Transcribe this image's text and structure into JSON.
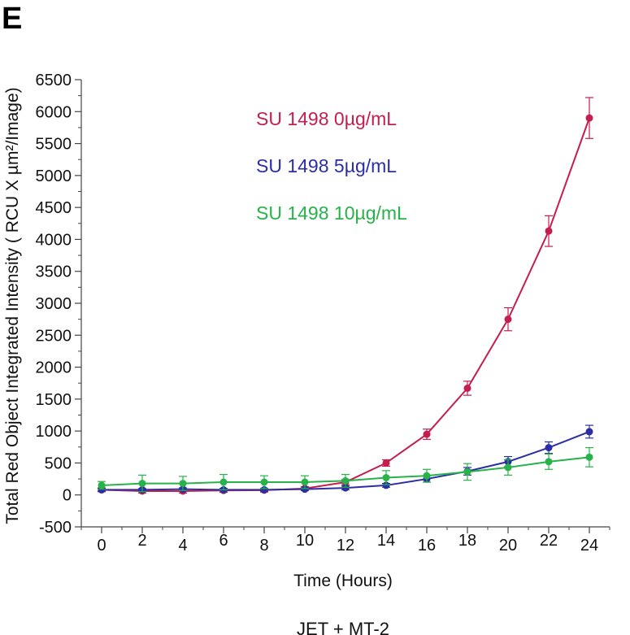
{
  "panel_label": "E",
  "caption": "JET + MT-2",
  "colors": {
    "series_0": "#c41e4f",
    "series_5": "#2b2fa3",
    "series_10": "#27b24a"
  },
  "chart_data": {
    "type": "line",
    "xlabel": "Time (Hours)",
    "ylabel": "Total Red Object Integrated Intensity ( RCU X µm²/Image)",
    "xlim": [
      -1,
      25
    ],
    "ylim": [
      -500,
      6500
    ],
    "x_ticks": [
      0,
      2,
      4,
      6,
      8,
      10,
      12,
      14,
      16,
      18,
      20,
      22,
      24
    ],
    "y_ticks": [
      -500,
      0,
      500,
      1000,
      1500,
      2000,
      2500,
      3000,
      3500,
      4000,
      4500,
      5000,
      5500,
      6000,
      6500
    ],
    "grid": false,
    "legend_position": "top-left",
    "x": [
      0,
      2,
      4,
      6,
      8,
      10,
      12,
      14,
      16,
      18,
      20,
      22,
      24
    ],
    "series": [
      {
        "name": "SU 1498 0µg/mL",
        "color": "#c41e4f",
        "values": [
          80,
          60,
          60,
          70,
          75,
          100,
          200,
          500,
          950,
          1670,
          2750,
          4130,
          5900
        ],
        "errors": [
          30,
          30,
          30,
          30,
          30,
          30,
          40,
          50,
          80,
          110,
          180,
          240,
          320
        ]
      },
      {
        "name": "SU 1498 5µg/mL",
        "color": "#2b2fa3",
        "values": [
          80,
          80,
          90,
          80,
          80,
          90,
          110,
          150,
          250,
          370,
          520,
          740,
          990
        ],
        "errors": [
          20,
          20,
          20,
          20,
          20,
          20,
          30,
          30,
          50,
          60,
          80,
          90,
          100
        ]
      },
      {
        "name": "SU 1498 10µg/mL",
        "color": "#27b24a",
        "values": [
          150,
          180,
          180,
          200,
          200,
          200,
          220,
          270,
          300,
          360,
          430,
          520,
          590
        ],
        "errors": [
          60,
          130,
          110,
          120,
          100,
          100,
          100,
          110,
          100,
          130,
          120,
          120,
          150
        ]
      }
    ]
  }
}
